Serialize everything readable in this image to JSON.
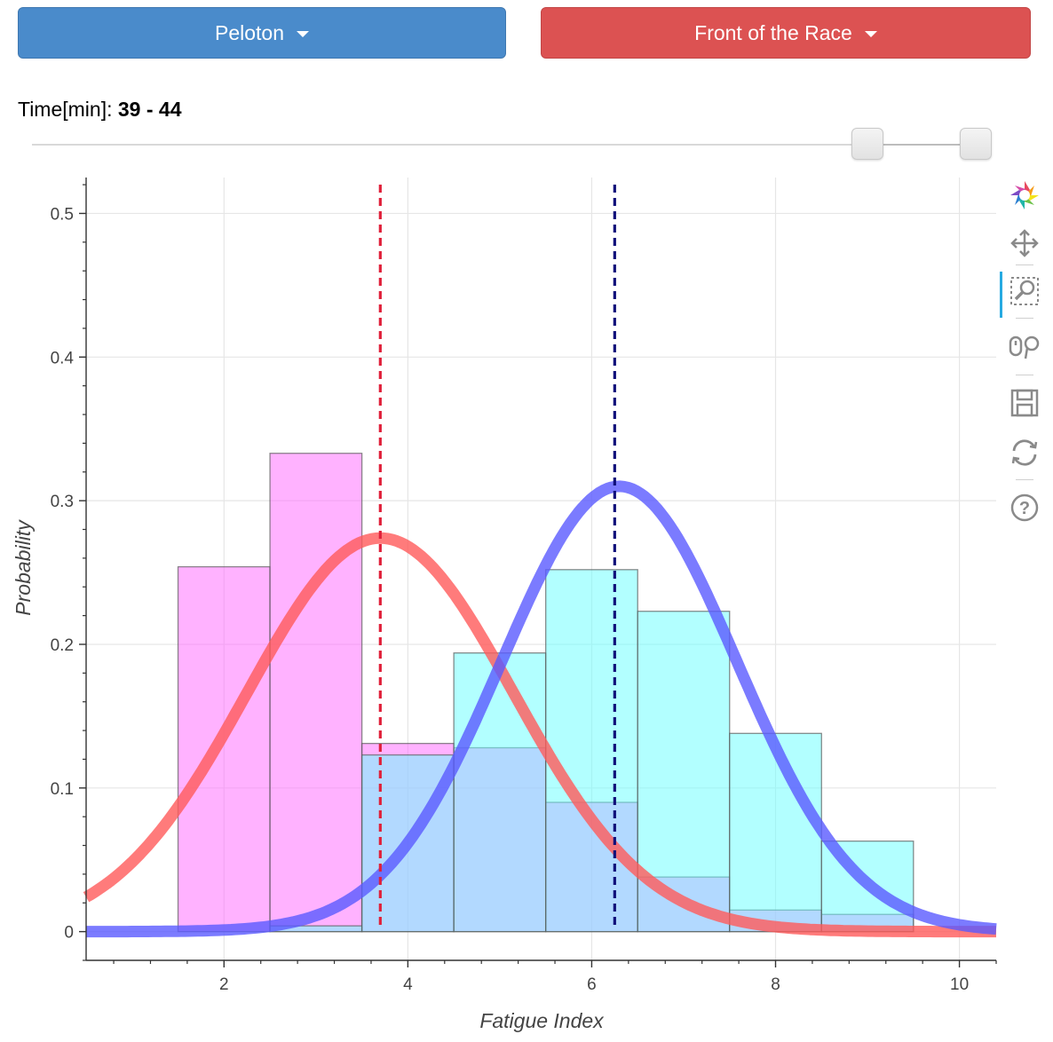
{
  "controls": {
    "peloton_label": "Peloton",
    "front_label": "Front of the Race",
    "peloton_color": "#4a8bcb",
    "front_color": "#dc5252"
  },
  "slider": {
    "title_label": "Time[min]: ",
    "title_value": "39 - 44",
    "min_value": 39,
    "max_value": 44
  },
  "toolbar": {
    "tools": [
      "bokeh-logo-icon",
      "pan-icon",
      "box-zoom-icon",
      "wheel-zoom-icon",
      "save-icon",
      "reset-icon",
      "help-icon"
    ],
    "active_tool": "box-zoom-icon"
  },
  "chart_data": {
    "type": "bar",
    "xlabel": "Fatigue Index",
    "ylabel": "Probability",
    "xlim": [
      0.5,
      10.4
    ],
    "ylim": [
      -0.02,
      0.525
    ],
    "x_ticks": [
      2,
      4,
      6,
      8,
      10
    ],
    "y_ticks": [
      0,
      0.1,
      0.2,
      0.3,
      0.4,
      0.5
    ],
    "y_tick_labels": [
      "0",
      "0.1",
      "0.2",
      "0.3",
      "0.4",
      "0.5"
    ],
    "grid": true,
    "histograms": [
      {
        "color": "#ff66ff",
        "bins": [
          {
            "x0": 1.5,
            "x1": 2.5,
            "value": 0.254
          },
          {
            "x0": 2.5,
            "x1": 3.5,
            "value": 0.333
          },
          {
            "x0": 3.5,
            "x1": 4.5,
            "value": 0.131
          },
          {
            "x0": 4.5,
            "x1": 5.5,
            "value": 0.128
          },
          {
            "x0": 5.5,
            "x1": 6.5,
            "value": 0.09
          },
          {
            "x0": 6.5,
            "x1": 7.5,
            "value": 0.038
          },
          {
            "x0": 7.5,
            "x1": 8.5,
            "value": 0.015
          },
          {
            "x0": 8.5,
            "x1": 9.5,
            "value": 0.012
          }
        ]
      },
      {
        "color": "#66ffff",
        "bins": [
          {
            "x0": 2.5,
            "x1": 3.5,
            "value": 0.004
          },
          {
            "x0": 3.5,
            "x1": 4.5,
            "value": 0.123
          },
          {
            "x0": 4.5,
            "x1": 5.5,
            "value": 0.194
          },
          {
            "x0": 5.5,
            "x1": 6.5,
            "value": 0.252
          },
          {
            "x0": 6.5,
            "x1": 7.5,
            "value": 0.223
          },
          {
            "x0": 7.5,
            "x1": 8.5,
            "value": 0.138
          },
          {
            "x0": 8.5,
            "x1": 9.5,
            "value": 0.063
          }
        ]
      }
    ],
    "curves": [
      {
        "color": "#ff5a5a",
        "mean": 3.7,
        "sd": 1.45,
        "peak": 0.274
      },
      {
        "color": "#5a5aff",
        "mean": 6.3,
        "sd": 1.28,
        "peak": 0.31
      }
    ],
    "mean_lines": [
      {
        "x": 3.7,
        "color": "#e0203a"
      },
      {
        "x": 6.25,
        "color": "#10107a"
      }
    ]
  }
}
